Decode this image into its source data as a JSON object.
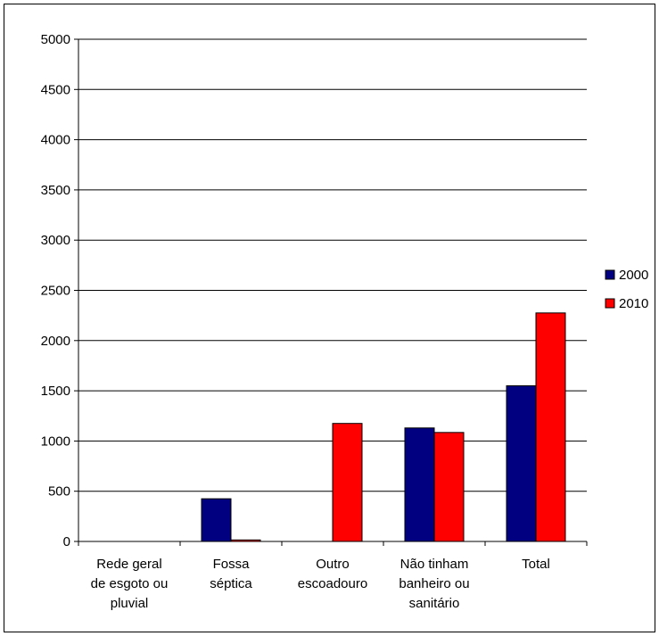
{
  "chart_data": {
    "type": "bar",
    "categories": [
      [
        "Rede geral",
        "de esgoto ou",
        "pluvial"
      ],
      [
        "Fossa",
        "séptica"
      ],
      [
        "Outro",
        "escoadouro"
      ],
      [
        "Não tinham",
        "banheiro ou",
        "sanitário"
      ],
      [
        "Total"
      ]
    ],
    "series": [
      {
        "name": "2000",
        "color": "#000080",
        "values": [
          0,
          425,
          0,
          1130,
          1550
        ]
      },
      {
        "name": "2010",
        "color": "#ff0000",
        "values": [
          0,
          15,
          1175,
          1085,
          2275
        ]
      }
    ],
    "ylim": [
      0,
      5000
    ],
    "yticks": [
      0,
      500,
      1000,
      1500,
      2000,
      2500,
      3000,
      3500,
      4000,
      4500,
      5000
    ],
    "grid": "horizontal",
    "legend": "right"
  }
}
